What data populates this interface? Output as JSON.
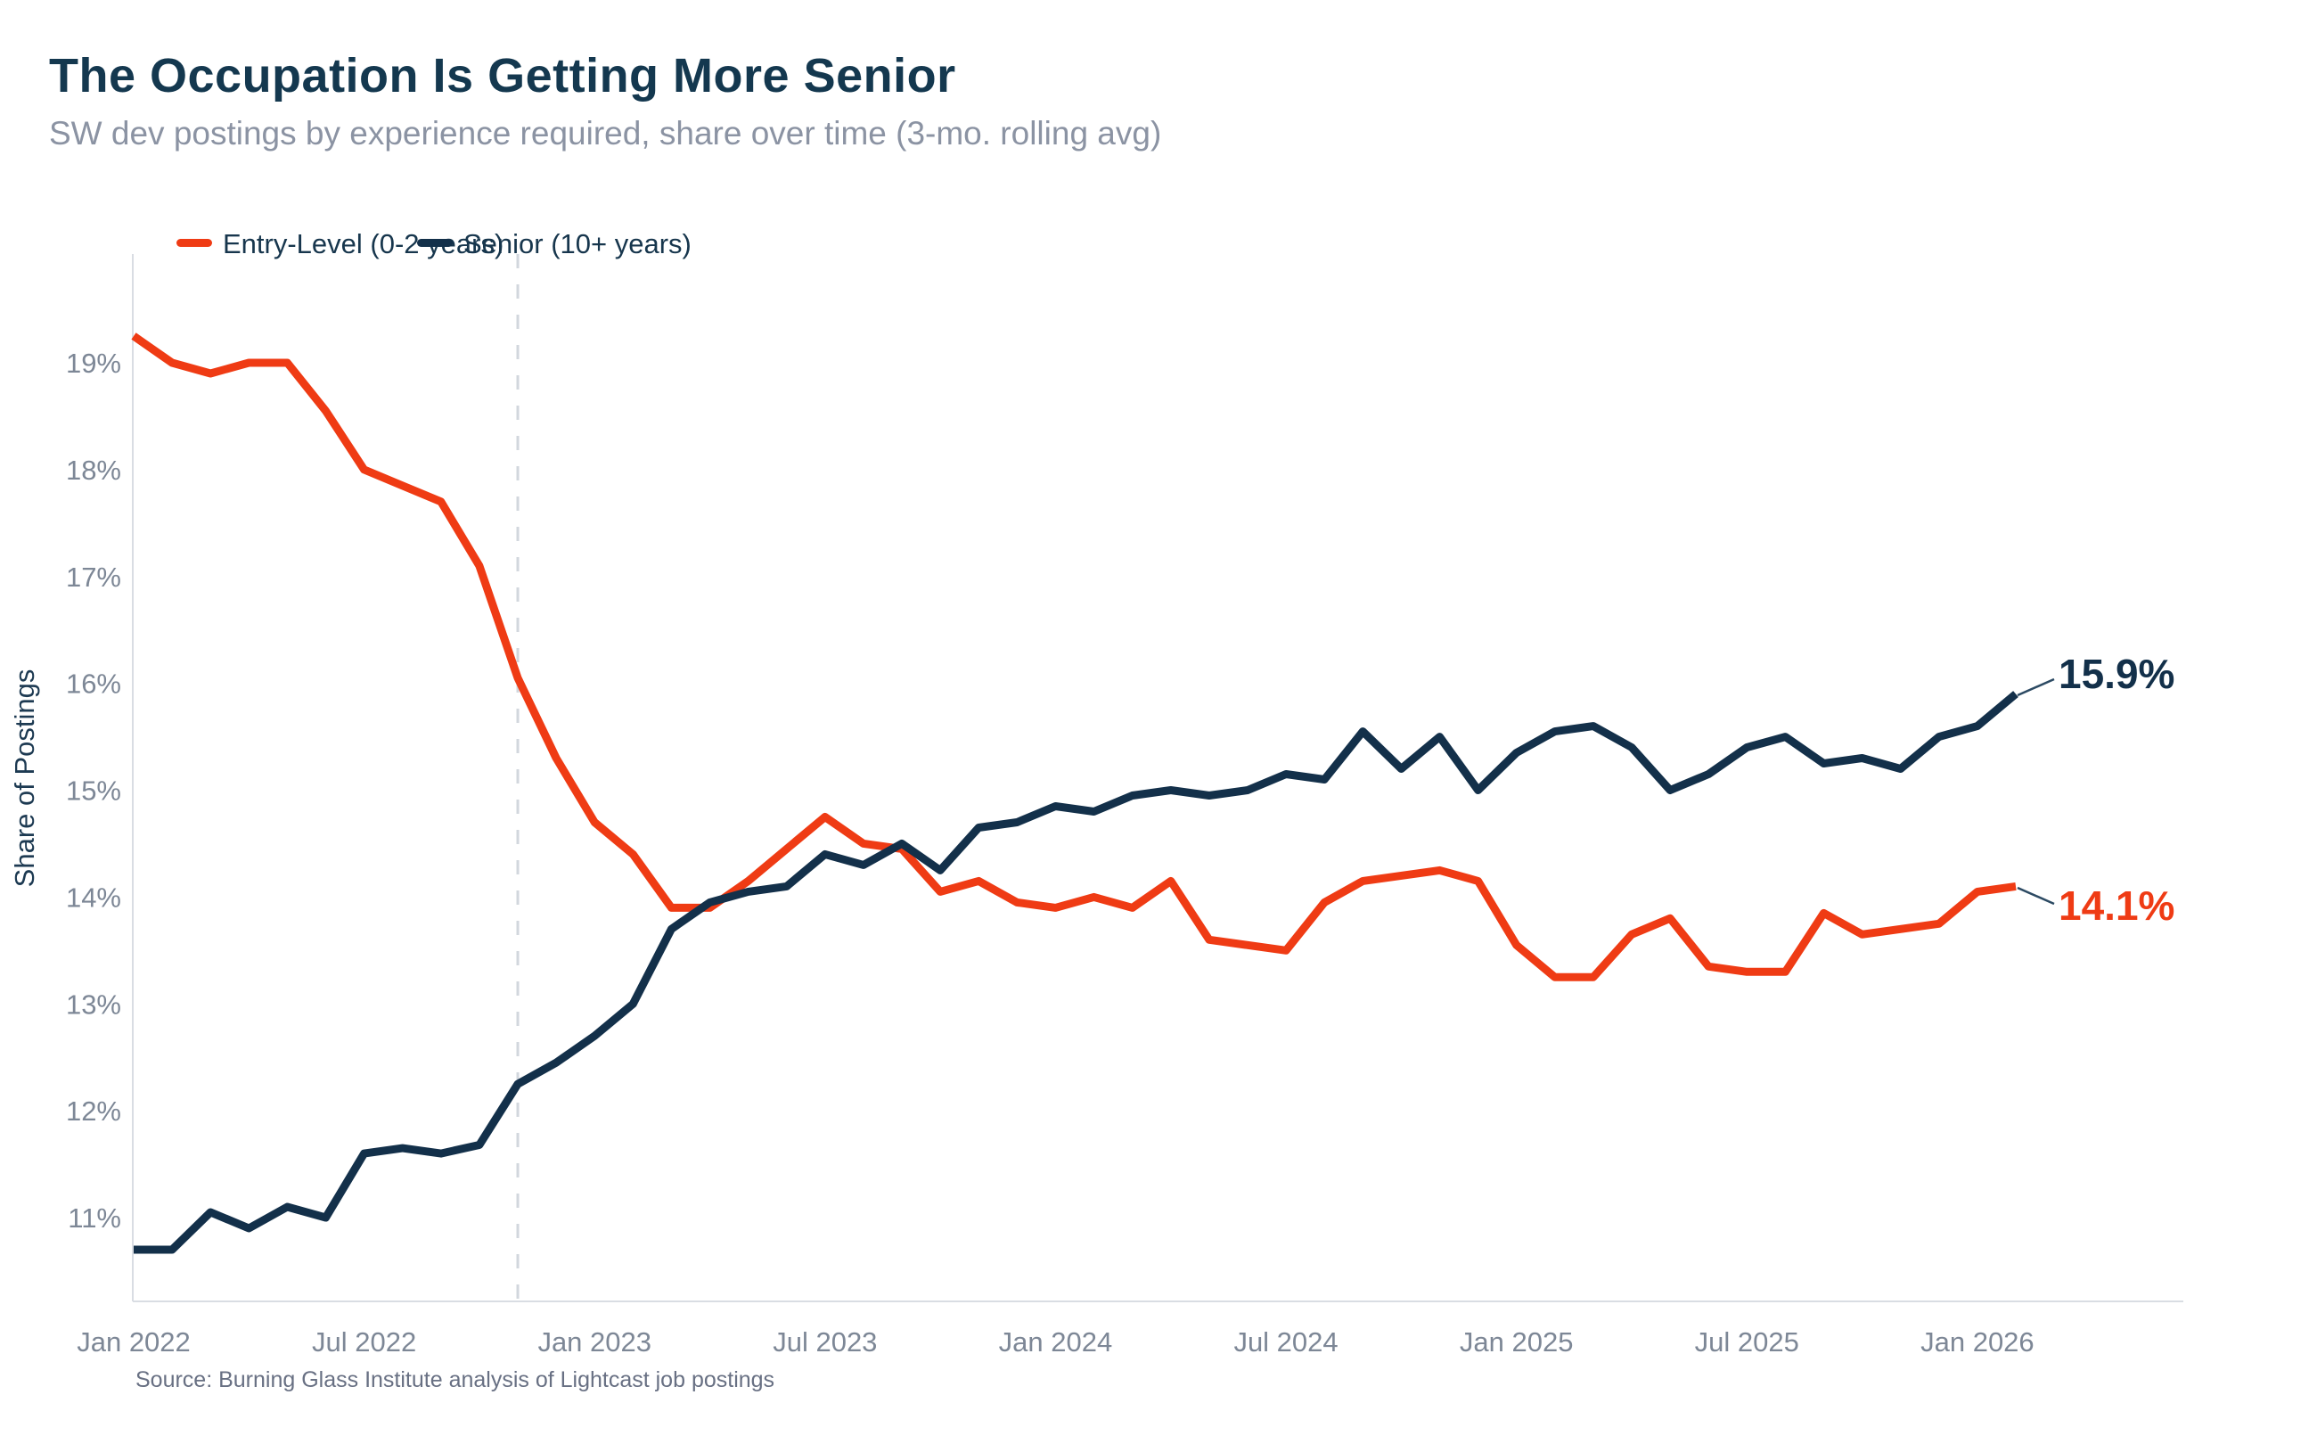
{
  "header": {
    "title": "The Occupation Is Getting More Senior",
    "subtitle": "SW dev postings by experience required, share over time (3-mo. rolling avg)"
  },
  "legend": [
    {
      "label": "Entry-Level (0-2 years)",
      "color": "#ef3b14"
    },
    {
      "label": "Senior (10+ years)",
      "color": "#13304a"
    }
  ],
  "source_note": "Source: Burning Glass Institute analysis of Lightcast job postings",
  "colors": {
    "entry_level": "#ef3b14",
    "senior": "#13304a",
    "axis_line": "#d9dde3",
    "reference_dash": "#d2d7dd",
    "tick_text": "#7d8796"
  },
  "chart_data": {
    "type": "line",
    "title": "The Occupation Is Getting More Senior",
    "subtitle": "SW dev postings by experience required, share over time (3-mo. rolling avg)",
    "ylabel": "Share of Postings",
    "xlabel": "",
    "grid": false,
    "legend_position": "top",
    "ylim": [
      10.2,
      20.0
    ],
    "y_ticks": [
      19,
      18,
      17,
      16,
      15,
      14,
      13,
      12,
      11
    ],
    "y_tick_suffix": "%",
    "x": [
      "2022-01",
      "2022-02",
      "2022-03",
      "2022-04",
      "2022-05",
      "2022-06",
      "2022-07",
      "2022-08",
      "2022-09",
      "2022-10",
      "2022-11",
      "2022-12",
      "2023-01",
      "2023-02",
      "2023-03",
      "2023-04",
      "2023-05",
      "2023-06",
      "2023-07",
      "2023-08",
      "2023-09",
      "2023-10",
      "2023-11",
      "2023-12",
      "2024-01",
      "2024-02",
      "2024-03",
      "2024-04",
      "2024-05",
      "2024-06",
      "2024-07",
      "2024-08",
      "2024-09",
      "2024-10",
      "2024-11",
      "2024-12",
      "2025-01",
      "2025-02",
      "2025-03",
      "2025-04",
      "2025-05",
      "2025-06",
      "2025-07",
      "2025-08",
      "2025-09",
      "2025-10",
      "2025-11",
      "2025-12",
      "2026-01",
      "2026-02"
    ],
    "x_ticks": [
      {
        "label": "Jan 2022",
        "month": 0
      },
      {
        "label": "Jul 2022",
        "month": 6
      },
      {
        "label": "Jan 2023",
        "month": 12
      },
      {
        "label": "Jul 2023",
        "month": 18
      },
      {
        "label": "Jan 2024",
        "month": 24
      },
      {
        "label": "Jul 2024",
        "month": 30
      },
      {
        "label": "Jan 2025",
        "month": 36
      },
      {
        "label": "Jul 2025",
        "month": 42
      },
      {
        "label": "Jan 2026",
        "month": 48
      }
    ],
    "reference_line_month": "2022-11",
    "series": [
      {
        "name": "Entry-Level (0-2 years)",
        "color": "#ef3b14",
        "values": [
          19.25,
          19.0,
          18.9,
          19.0,
          19.0,
          18.55,
          18.0,
          17.85,
          17.7,
          17.1,
          16.05,
          15.3,
          14.7,
          14.4,
          13.9,
          13.9,
          14.15,
          14.45,
          14.75,
          14.5,
          14.45,
          14.05,
          14.15,
          13.95,
          13.9,
          14.0,
          13.9,
          14.15,
          13.6,
          13.55,
          13.5,
          13.95,
          14.15,
          14.2,
          14.25,
          14.15,
          13.55,
          13.25,
          13.25,
          13.65,
          13.8,
          13.35,
          13.3,
          13.3,
          13.85,
          13.65,
          13.7,
          13.75,
          14.05,
          14.1
        ]
      },
      {
        "name": "Senior (10+ years)",
        "color": "#13304a",
        "values": [
          10.7,
          10.7,
          11.05,
          10.9,
          11.1,
          11.0,
          11.6,
          11.65,
          11.6,
          11.68,
          12.25,
          12.45,
          12.7,
          13.0,
          13.7,
          13.95,
          14.05,
          14.1,
          14.4,
          14.3,
          14.5,
          14.25,
          14.65,
          14.7,
          14.85,
          14.8,
          14.95,
          15.0,
          14.95,
          15.0,
          15.15,
          15.1,
          15.55,
          15.2,
          15.5,
          15.0,
          15.35,
          15.55,
          15.6,
          15.4,
          15.0,
          15.15,
          15.4,
          15.5,
          15.25,
          15.3,
          15.2,
          15.5,
          15.6,
          15.9
        ]
      }
    ],
    "end_labels": [
      {
        "text": "15.9%",
        "series": "Senior (10+ years)"
      },
      {
        "text": "14.1%",
        "series": "Entry-Level (0-2 years)"
      }
    ]
  }
}
